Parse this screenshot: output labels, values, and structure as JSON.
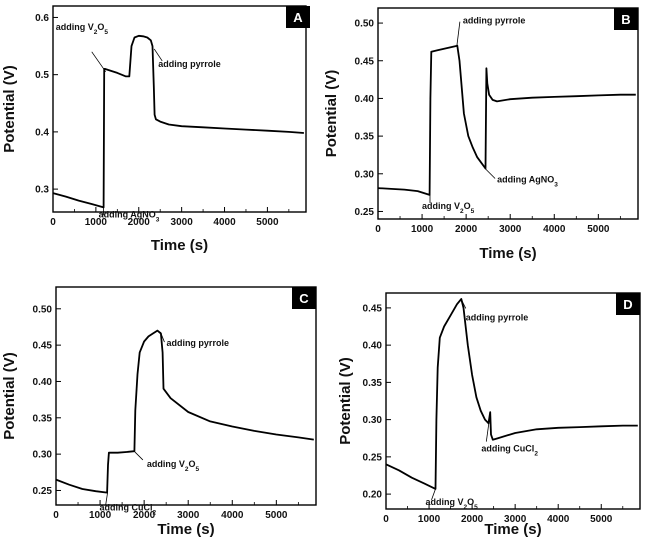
{
  "chart_data": [
    {
      "panel": "A",
      "type": "line",
      "xlabel": "Time (s)",
      "ylabel": "Potential (V)",
      "xlim": [
        0,
        5900
      ],
      "ylim": [
        0.26,
        0.62
      ],
      "xticks": [
        0,
        1000,
        2000,
        3000,
        4000,
        5000
      ],
      "xtick_labels": [
        "0",
        "1000",
        "2000",
        "3000",
        "4000",
        "5000"
      ],
      "yticks": [
        0.3,
        0.4,
        0.5,
        0.6
      ],
      "ytick_labels": [
        "0.3",
        "0.4",
        "0.5",
        "0.6"
      ],
      "series": [
        {
          "name": "potential",
          "x": [
            0,
            300,
            600,
            900,
            1180,
            1195,
            1210,
            1300,
            1500,
            1700,
            1780,
            1830,
            1900,
            2000,
            2100,
            2200,
            2280,
            2320,
            2350,
            2370,
            2400,
            2500,
            2700,
            3000,
            3500,
            4000,
            4500,
            5000,
            5500,
            5850
          ],
          "y": [
            0.293,
            0.287,
            0.28,
            0.274,
            0.268,
            0.51,
            0.51,
            0.508,
            0.503,
            0.497,
            0.497,
            0.55,
            0.565,
            0.568,
            0.567,
            0.565,
            0.56,
            0.55,
            0.48,
            0.43,
            0.422,
            0.418,
            0.413,
            0.41,
            0.408,
            0.406,
            0.404,
            0.402,
            0.4,
            0.398
          ]
        }
      ],
      "annotations": [
        {
          "base": "adding V",
          "sub1": "2",
          "mid": "O",
          "sub2": "5",
          "x": 1230,
          "y": 0.505
        },
        {
          "base": "adding pyrrole",
          "sub1": "",
          "mid": "",
          "sub2": "",
          "x": 2360,
          "y": 0.545
        },
        {
          "base": "adding AgNO",
          "sub1": "",
          "mid": "",
          "sub2": "3",
          "x": 1180,
          "y": 0.268
        }
      ]
    },
    {
      "panel": "B",
      "type": "line",
      "xlabel": "Time (s)",
      "ylabel": "Potential (V)",
      "xlim": [
        0,
        5900
      ],
      "ylim": [
        0.24,
        0.52
      ],
      "xticks": [
        0,
        1000,
        2000,
        3000,
        4000,
        5000
      ],
      "xtick_labels": [
        "0",
        "1000",
        "2000",
        "3000",
        "4000",
        "5000"
      ],
      "yticks": [
        0.25,
        0.3,
        0.35,
        0.4,
        0.45,
        0.5
      ],
      "ytick_labels": [
        "0.25",
        "0.30",
        "0.35",
        "0.40",
        "0.45",
        "0.50"
      ],
      "series": [
        {
          "name": "potential",
          "x": [
            0,
            300,
            600,
            900,
            1170,
            1190,
            1210,
            1350,
            1500,
            1650,
            1800,
            1850,
            1950,
            2050,
            2150,
            2250,
            2350,
            2440,
            2460,
            2480,
            2520,
            2600,
            2700,
            3000,
            3500,
            4000,
            4500,
            5000,
            5500,
            5850
          ],
          "y": [
            0.281,
            0.28,
            0.279,
            0.277,
            0.272,
            0.4,
            0.462,
            0.464,
            0.466,
            0.468,
            0.47,
            0.45,
            0.38,
            0.35,
            0.335,
            0.322,
            0.314,
            0.307,
            0.44,
            0.42,
            0.405,
            0.398,
            0.396,
            0.399,
            0.401,
            0.402,
            0.403,
            0.404,
            0.405,
            0.405
          ]
        }
      ],
      "annotations": [
        {
          "base": "adding pyrrole",
          "sub1": "",
          "mid": "",
          "sub2": "",
          "x": 1790,
          "y": 0.47
        },
        {
          "base": "adding AgNO",
          "sub1": "",
          "mid": "",
          "sub2": "3",
          "x": 2430,
          "y": 0.307
        },
        {
          "base": "adding V",
          "sub1": "2",
          "mid": "O",
          "sub2": "5",
          "x": 1180,
          "y": 0.272
        }
      ]
    },
    {
      "panel": "C",
      "type": "line",
      "xlabel": "Time (s)",
      "ylabel": "Potential (V)",
      "xlim": [
        0,
        5900
      ],
      "ylim": [
        0.23,
        0.53
      ],
      "xticks": [
        0,
        1000,
        2000,
        3000,
        4000,
        5000
      ],
      "xtick_labels": [
        "0",
        "1000",
        "2000",
        "3000",
        "4000",
        "5000"
      ],
      "yticks": [
        0.25,
        0.3,
        0.35,
        0.4,
        0.45,
        0.5
      ],
      "ytick_labels": [
        "0.25",
        "0.30",
        "0.35",
        "0.40",
        "0.45",
        "0.50"
      ],
      "series": [
        {
          "name": "potential",
          "x": [
            0,
            300,
            600,
            900,
            1160,
            1180,
            1200,
            1400,
            1600,
            1780,
            1800,
            1850,
            1900,
            2000,
            2100,
            2200,
            2300,
            2380,
            2420,
            2440,
            2600,
            3000,
            3500,
            4000,
            4500,
            5000,
            5500,
            5850
          ],
          "y": [
            0.265,
            0.258,
            0.252,
            0.249,
            0.247,
            0.285,
            0.302,
            0.302,
            0.303,
            0.304,
            0.36,
            0.41,
            0.44,
            0.455,
            0.462,
            0.466,
            0.47,
            0.466,
            0.44,
            0.39,
            0.377,
            0.358,
            0.345,
            0.338,
            0.332,
            0.327,
            0.323,
            0.32
          ]
        }
      ],
      "annotations": [
        {
          "base": "adding pyrrole",
          "sub1": "",
          "mid": "",
          "sub2": "",
          "x": 2370,
          "y": 0.468
        },
        {
          "base": "adding V",
          "sub1": "2",
          "mid": "O",
          "sub2": "5",
          "x": 1790,
          "y": 0.303
        },
        {
          "base": "adding CuCl",
          "sub1": "",
          "mid": "",
          "sub2": "2",
          "x": 1170,
          "y": 0.247
        }
      ]
    },
    {
      "panel": "D",
      "type": "line",
      "xlabel": "Time (s)",
      "ylabel": "Potential (V)",
      "xlim": [
        0,
        5900
      ],
      "ylim": [
        0.18,
        0.47
      ],
      "xticks": [
        0,
        1000,
        2000,
        3000,
        4000,
        5000
      ],
      "xtick_labels": [
        "0",
        "1000",
        "2000",
        "3000",
        "4000",
        "5000"
      ],
      "yticks": [
        0.2,
        0.25,
        0.3,
        0.35,
        0.4,
        0.45
      ],
      "ytick_labels": [
        "0.20",
        "0.25",
        "0.30",
        "0.35",
        "0.40",
        "0.45"
      ],
      "series": [
        {
          "name": "potential",
          "x": [
            0,
            300,
            600,
            900,
            1150,
            1170,
            1200,
            1250,
            1350,
            1500,
            1650,
            1750,
            1800,
            1900,
            2000,
            2100,
            2200,
            2300,
            2380,
            2420,
            2440,
            2480,
            2600,
            3000,
            3500,
            4000,
            4500,
            5000,
            5500,
            5850
          ],
          "y": [
            0.24,
            0.232,
            0.222,
            0.214,
            0.207,
            0.3,
            0.37,
            0.41,
            0.425,
            0.44,
            0.455,
            0.462,
            0.45,
            0.4,
            0.36,
            0.33,
            0.312,
            0.3,
            0.295,
            0.31,
            0.28,
            0.273,
            0.275,
            0.282,
            0.287,
            0.289,
            0.29,
            0.291,
            0.292,
            0.292
          ]
        }
      ],
      "annotations": [
        {
          "base": "adding pyrrole",
          "sub1": "",
          "mid": "",
          "sub2": "",
          "x": 1760,
          "y": 0.46
        },
        {
          "base": "adding CuCl",
          "sub1": "",
          "mid": "",
          "sub2": "2",
          "x": 2400,
          "y": 0.3
        },
        {
          "base": "adding V",
          "sub1": "2",
          "mid": "O",
          "sub2": "5",
          "x": 1150,
          "y": 0.207
        }
      ]
    }
  ]
}
